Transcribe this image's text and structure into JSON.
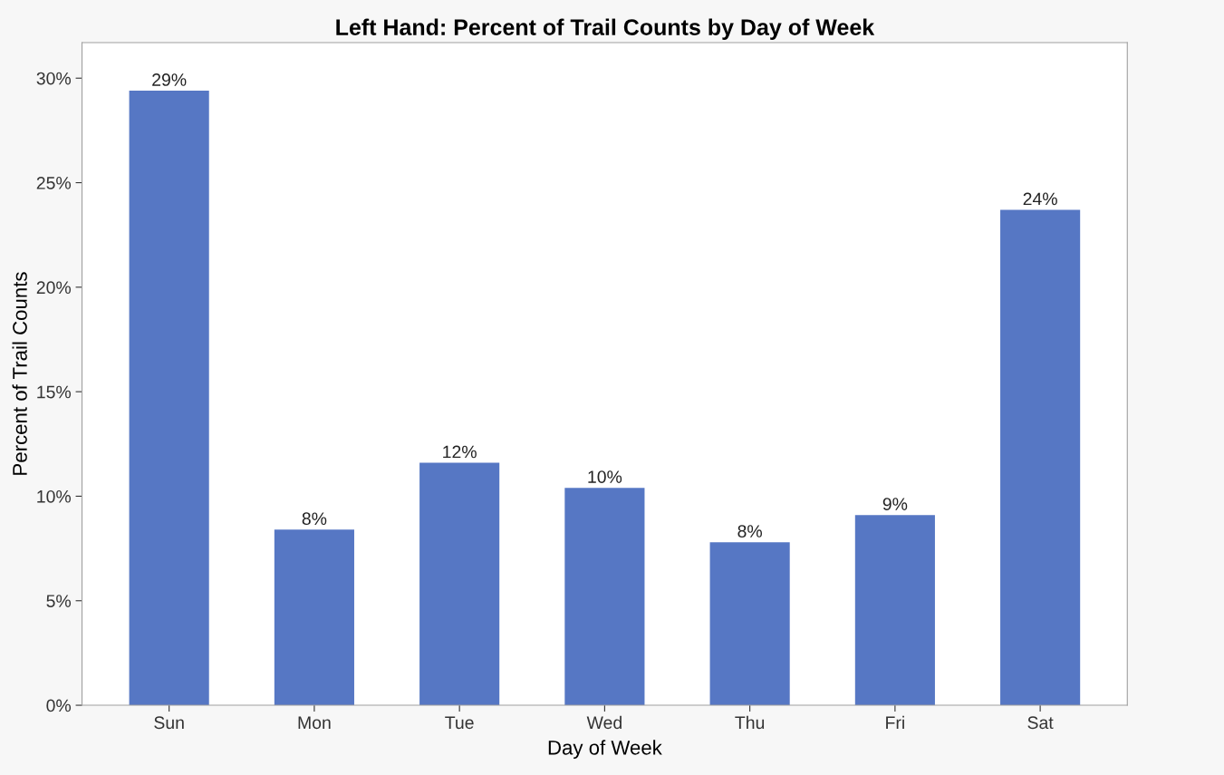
{
  "chart_data": {
    "type": "bar",
    "title": "Left Hand: Percent of Trail Counts by Day of Week",
    "xlabel": "Day of Week",
    "ylabel": "Percent of Trail Counts",
    "categories": [
      "Sun",
      "Mon",
      "Tue",
      "Wed",
      "Thu",
      "Fri",
      "Sat"
    ],
    "values": [
      29.4,
      8.4,
      11.6,
      10.4,
      7.8,
      9.1,
      23.7
    ],
    "value_labels": [
      "29%",
      "8%",
      "12%",
      "10%",
      "8%",
      "9%",
      "24%"
    ],
    "color": "#5677c4",
    "ylim": [
      0,
      31.7
    ],
    "yticks": [
      {
        "value": 0,
        "label": "0%"
      },
      {
        "value": 5,
        "label": "5%"
      },
      {
        "value": 10,
        "label": "10%"
      },
      {
        "value": 15,
        "label": "15%"
      },
      {
        "value": 20,
        "label": "20%"
      },
      {
        "value": 25,
        "label": "25%"
      },
      {
        "value": 30,
        "label": "30%"
      }
    ],
    "grid": false,
    "legend": false
  }
}
